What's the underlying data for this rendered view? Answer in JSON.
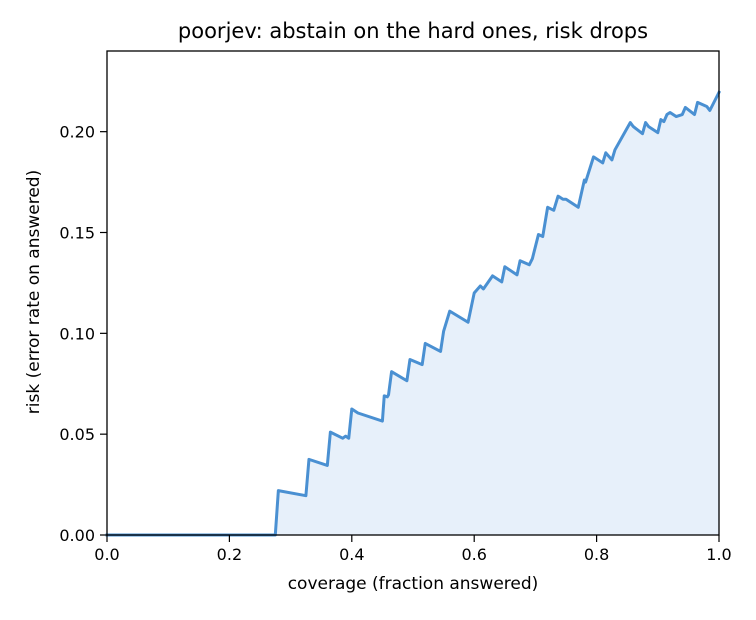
{
  "chart_data": {
    "type": "area",
    "title": "poorjev: abstain on the hard ones, risk drops",
    "xlabel": "coverage (fraction answered)",
    "ylabel": "risk (error rate on answered)",
    "xlim": [
      0.0,
      1.0
    ],
    "ylim": [
      0.0,
      0.24
    ],
    "xticks": [
      0.0,
      0.2,
      0.4,
      0.6,
      0.8,
      1.0
    ],
    "xtick_labels": [
      "0.0",
      "0.2",
      "0.4",
      "0.6",
      "0.8",
      "1.0"
    ],
    "yticks": [
      0.0,
      0.05,
      0.1,
      0.15,
      0.2
    ],
    "ytick_labels": [
      "0.00",
      "0.05",
      "0.10",
      "0.15",
      "0.20"
    ],
    "grid": false,
    "legend": "none",
    "colors": {
      "line": "#4a90d2",
      "fill": "#e7f0fa"
    },
    "series": [
      {
        "x": [
          0.0,
          0.275,
          0.28,
          0.325,
          0.33,
          0.36,
          0.365,
          0.385,
          0.39,
          0.395,
          0.4,
          0.41,
          0.45,
          0.453,
          0.458,
          0.46,
          0.465,
          0.49,
          0.495,
          0.515,
          0.52,
          0.545,
          0.55,
          0.56,
          0.59,
          0.6,
          0.61,
          0.615,
          0.63,
          0.645,
          0.65,
          0.67,
          0.675,
          0.69,
          0.695,
          0.705,
          0.712,
          0.72,
          0.73,
          0.737,
          0.74,
          0.745,
          0.75,
          0.77,
          0.78,
          0.782,
          0.795,
          0.8,
          0.81,
          0.815,
          0.825,
          0.83,
          0.855,
          0.86,
          0.875,
          0.88,
          0.885,
          0.9,
          0.905,
          0.91,
          0.915,
          0.92,
          0.93,
          0.94,
          0.945,
          0.96,
          0.965,
          0.98,
          0.985,
          1.0
        ],
        "y": [
          0.0,
          0.0,
          0.022,
          0.0195,
          0.0375,
          0.0345,
          0.051,
          0.048,
          0.049,
          0.048,
          0.0625,
          0.0605,
          0.0565,
          0.069,
          0.0685,
          0.0695,
          0.081,
          0.0765,
          0.087,
          0.0845,
          0.095,
          0.091,
          0.101,
          0.111,
          0.1055,
          0.12,
          0.1235,
          0.122,
          0.1285,
          0.1255,
          0.133,
          0.129,
          0.136,
          0.134,
          0.137,
          0.149,
          0.148,
          0.1625,
          0.161,
          0.168,
          0.1675,
          0.1665,
          0.1665,
          0.1625,
          0.176,
          0.175,
          0.1875,
          0.1865,
          0.1845,
          0.1895,
          0.186,
          0.191,
          0.2045,
          0.2025,
          0.199,
          0.2045,
          0.2025,
          0.1995,
          0.206,
          0.205,
          0.2085,
          0.2095,
          0.2075,
          0.2085,
          0.212,
          0.2085,
          0.2145,
          0.2125,
          0.2105,
          0.2195
        ]
      }
    ]
  }
}
